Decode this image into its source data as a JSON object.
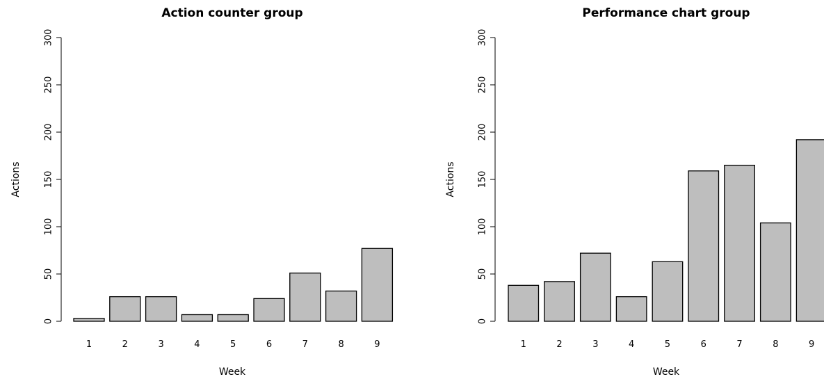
{
  "chart_data": [
    {
      "type": "bar",
      "title": "Action counter group",
      "xlabel": "Week",
      "ylabel": "Actions",
      "categories": [
        "1",
        "2",
        "3",
        "4",
        "5",
        "6",
        "7",
        "8",
        "9"
      ],
      "values": [
        3,
        26,
        26,
        7,
        7,
        24,
        51,
        32,
        77
      ],
      "ylim": [
        0,
        300
      ],
      "yticks": [
        0,
        50,
        100,
        150,
        200,
        250,
        300
      ],
      "bar_color": "#bebebe",
      "grid": false
    },
    {
      "type": "bar",
      "title": "Performance chart group",
      "xlabel": "Week",
      "ylabel": "Actions",
      "categories": [
        "1",
        "2",
        "3",
        "4",
        "5",
        "6",
        "7",
        "8",
        "9"
      ],
      "values": [
        38,
        42,
        72,
        26,
        63,
        159,
        165,
        104,
        192
      ],
      "ylim": [
        0,
        300
      ],
      "yticks": [
        0,
        50,
        100,
        150,
        200,
        250,
        300
      ],
      "bar_color": "#bebebe",
      "grid": false
    }
  ]
}
